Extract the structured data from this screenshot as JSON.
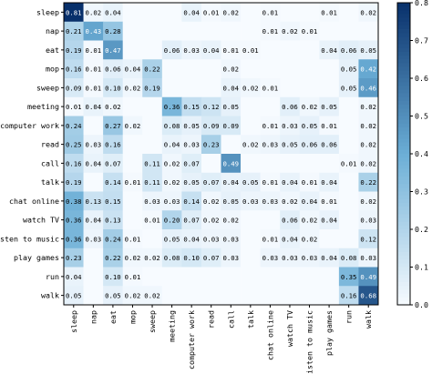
{
  "chart_data": {
    "type": "heatmap",
    "title": "",
    "xlabel": "",
    "ylabel": "",
    "rows": [
      "sleep",
      "nap",
      "eat",
      "mop",
      "sweep",
      "meeting",
      "computer work",
      "read",
      "call",
      "talk",
      "chat online",
      "watch TV",
      "listen to music",
      "play games",
      "run",
      "walk"
    ],
    "cols": [
      "sleep",
      "nap",
      "eat",
      "mop",
      "sweep",
      "meeting",
      "computer work",
      "read",
      "call",
      "talk",
      "chat online",
      "watch TV",
      "listen to music",
      "play games",
      "run",
      "walk"
    ],
    "values": [
      [
        0.81,
        0.02,
        0.04,
        0,
        0,
        0,
        0.04,
        0.01,
        0.02,
        0,
        0.01,
        0,
        0,
        0.01,
        0,
        0.02
      ],
      [
        0.21,
        0.43,
        0.28,
        0,
        0,
        0,
        0,
        0,
        0,
        0,
        0.01,
        0.02,
        0.01,
        0,
        0,
        0
      ],
      [
        0.19,
        0.01,
        0.47,
        0,
        0,
        0.06,
        0.03,
        0.04,
        0.01,
        0.01,
        0,
        0,
        0,
        0.04,
        0.06,
        0.05
      ],
      [
        0.16,
        0.01,
        0.06,
        0.04,
        0.22,
        0,
        0,
        0,
        0.02,
        0,
        0,
        0,
        0,
        0,
        0.05,
        0.42
      ],
      [
        0.09,
        0.01,
        0.1,
        0.02,
        0.19,
        0,
        0,
        0,
        0.04,
        0.02,
        0.01,
        0,
        0,
        0,
        0.05,
        0.46
      ],
      [
        0.01,
        0.04,
        0.02,
        0,
        0,
        0.36,
        0.15,
        0.12,
        0.05,
        0,
        0,
        0.06,
        0.02,
        0.05,
        0,
        0.02
      ],
      [
        0.24,
        0,
        0.27,
        0.02,
        0,
        0.08,
        0.05,
        0.09,
        0.09,
        0,
        0.01,
        0.03,
        0.05,
        0.01,
        0,
        0.02
      ],
      [
        0.25,
        0.03,
        0.16,
        0,
        0,
        0.04,
        0.03,
        0.23,
        0,
        0.02,
        0.03,
        0.05,
        0.06,
        0.06,
        0,
        0.02
      ],
      [
        0.16,
        0.04,
        0.07,
        0,
        0.11,
        0.02,
        0.07,
        0,
        0.49,
        0,
        0,
        0,
        0,
        0,
        0.01,
        0.02
      ],
      [
        0.19,
        0,
        0.14,
        0.01,
        0.11,
        0.02,
        0.05,
        0.07,
        0.04,
        0.05,
        0.01,
        0.04,
        0.01,
        0.04,
        0,
        0.22
      ],
      [
        0.38,
        0.13,
        0.15,
        0,
        0.03,
        0.03,
        0.14,
        0.02,
        0.05,
        0.03,
        0.03,
        0.02,
        0.04,
        0.01,
        0,
        0.02
      ],
      [
        0.36,
        0.04,
        0.13,
        0,
        0.01,
        0.2,
        0.07,
        0.02,
        0.02,
        0,
        0,
        0.06,
        0.02,
        0.04,
        0,
        0.03
      ],
      [
        0.36,
        0.03,
        0.24,
        0.01,
        0,
        0.05,
        0.04,
        0.03,
        0.03,
        0,
        0.01,
        0.04,
        0.02,
        0,
        0,
        0.12
      ],
      [
        0.23,
        0,
        0.22,
        0.02,
        0.02,
        0.08,
        0.1,
        0.07,
        0.03,
        0,
        0.03,
        0.03,
        0.03,
        0.04,
        0.08,
        0.03
      ],
      [
        0.04,
        0,
        0.1,
        0.01,
        0,
        0,
        0,
        0,
        0,
        0,
        0,
        0,
        0,
        0,
        0.35,
        0.49
      ],
      [
        0.05,
        0,
        0.05,
        0.02,
        0.02,
        0,
        0,
        0,
        0,
        0,
        0,
        0,
        0,
        0,
        0.16,
        0.68
      ]
    ],
    "value_range": [
      0,
      0.8
    ],
    "colorbar_ticks": [
      "0.0",
      "0.1",
      "0.2",
      "0.3",
      "0.4",
      "0.5",
      "0.6",
      "0.7",
      "0.8"
    ],
    "colormap": "Blues",
    "colors": {
      "low": "#f7fbff",
      "mid": "#6baed6",
      "high": "#08306b"
    },
    "legend_position": "right"
  }
}
